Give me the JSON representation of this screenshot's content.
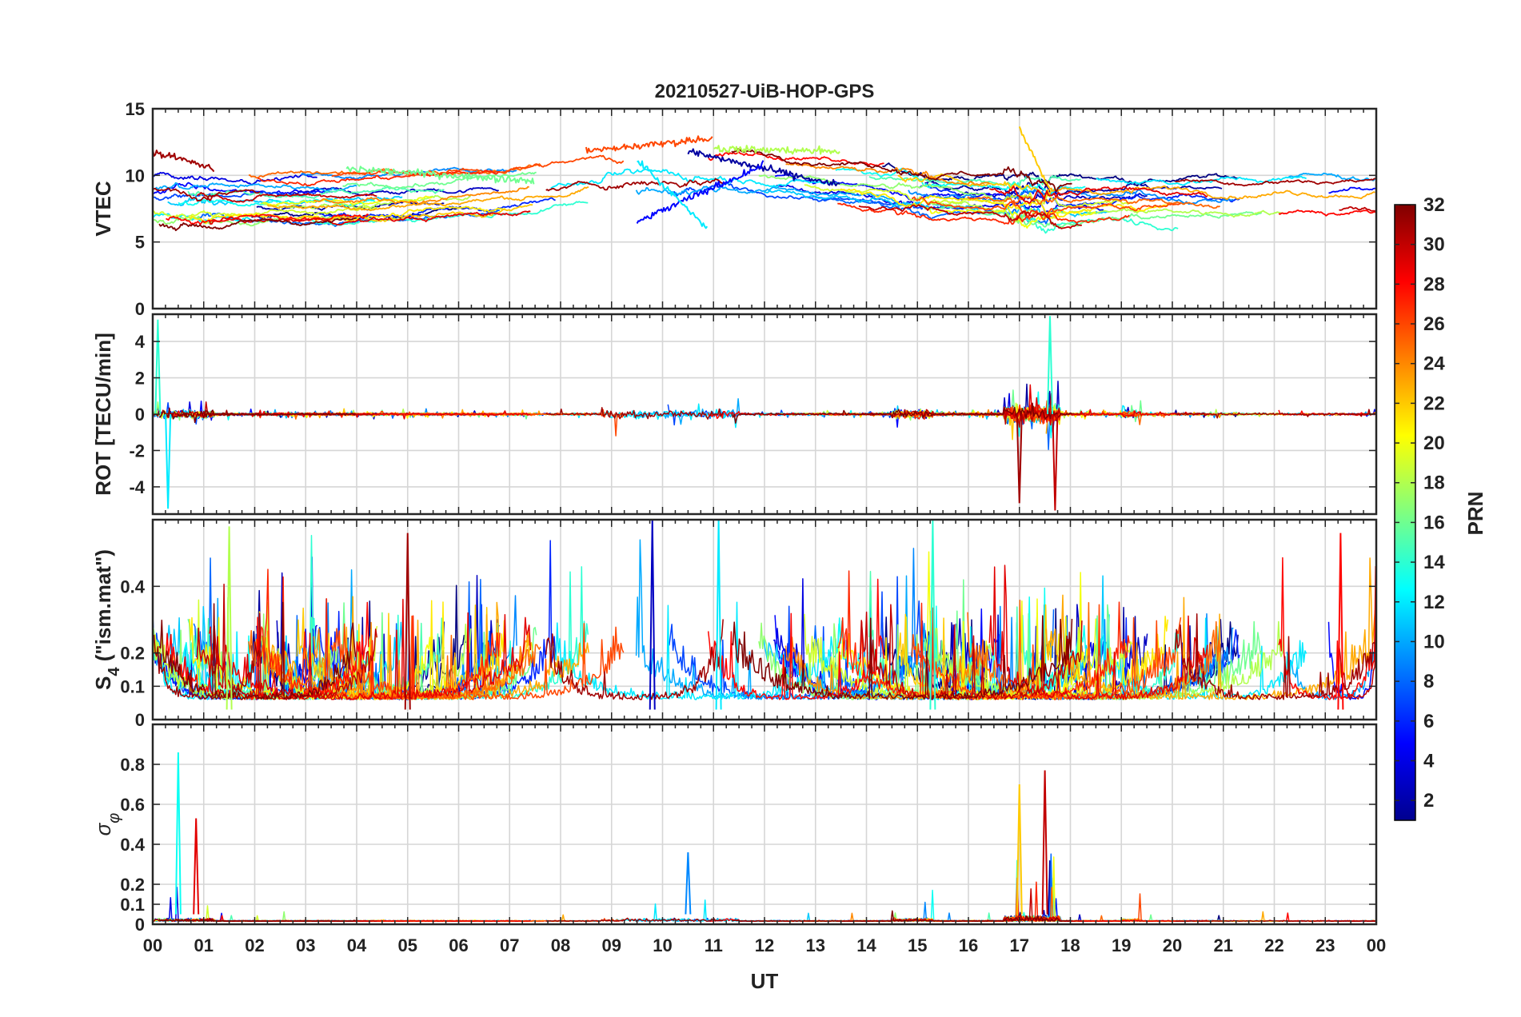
{
  "title": "20210527-UiB-HOP-GPS",
  "xaxis": {
    "label": "UT",
    "range": [
      0,
      24
    ],
    "ticks": [
      0,
      1,
      2,
      3,
      4,
      5,
      6,
      7,
      8,
      9,
      10,
      11,
      12,
      13,
      14,
      15,
      16,
      17,
      18,
      19,
      20,
      21,
      22,
      23,
      24
    ],
    "tick_labels": [
      "00",
      "01",
      "02",
      "03",
      "04",
      "05",
      "06",
      "07",
      "08",
      "09",
      "10",
      "11",
      "12",
      "13",
      "14",
      "15",
      "16",
      "17",
      "18",
      "19",
      "20",
      "21",
      "22",
      "23",
      "00"
    ]
  },
  "colorbar": {
    "label": "PRN",
    "range": [
      1,
      32
    ],
    "ticks": [
      2,
      4,
      6,
      8,
      10,
      12,
      14,
      16,
      18,
      20,
      22,
      24,
      26,
      28,
      30,
      32
    ],
    "colormap": "jet",
    "colors": [
      "#00008f",
      "#0000ff",
      "#00ffff",
      "#ffff00",
      "#ff0000",
      "#800000"
    ]
  },
  "chart_data": [
    {
      "type": "line",
      "id": "vtec",
      "ylabel": "VTEC",
      "ylim": [
        0,
        15
      ],
      "yticks": [
        0,
        5,
        10,
        15
      ],
      "ytick_labels": [
        "0",
        "5",
        "10",
        "15"
      ],
      "grid": true,
      "series_note": "one line per GPS PRN (1-32), color from colorbar",
      "series": [
        {
          "prn": 2,
          "x": [
            10.5,
            13.5
          ],
          "values": [
            11.8,
            9.2
          ]
        },
        {
          "prn": 5,
          "x": [
            9.5,
            12.0
          ],
          "values": [
            6.5,
            10.8
          ]
        },
        {
          "prn": 12,
          "x": [
            9.5,
            10.9
          ],
          "values": [
            11.2,
            5.9
          ]
        },
        {
          "prn": 16,
          "x": [
            3.8,
            7.5
          ],
          "values": [
            10.5,
            9.6
          ]
        },
        {
          "prn": 18,
          "x": [
            11.0,
            13.5
          ],
          "values": [
            12.0,
            11.8
          ]
        },
        {
          "prn": 22,
          "x": [
            17.0,
            17.6
          ],
          "values": [
            13.5,
            9.0
          ]
        },
        {
          "prn": 26,
          "x": [
            8.5,
            11.0
          ],
          "values": [
            11.8,
            12.8
          ]
        },
        {
          "prn": 31,
          "x": [
            0.0,
            1.2
          ],
          "values": [
            11.8,
            10.5
          ]
        }
      ]
    },
    {
      "type": "line",
      "id": "rot",
      "ylabel": "ROT [TECU/min]",
      "ylim": [
        -5.5,
        5.5
      ],
      "yticks": [
        -4,
        -2,
        0,
        2,
        4
      ],
      "ytick_labels": [
        "-4",
        "-2",
        "0",
        "2",
        "4"
      ],
      "grid": true,
      "series_note": "fluctuations around 0 for all PRNs; peaks near 00 UT, 09-10 UT, 15 UT and 17 UT",
      "series": [
        {
          "prn": 14,
          "x": [
            0.1
          ],
          "values": [
            5.2
          ]
        },
        {
          "prn": 12,
          "x": [
            0.3
          ],
          "values": [
            -5.2
          ]
        },
        {
          "prn": 31,
          "x": [
            17.0
          ],
          "values": [
            -4.9
          ]
        },
        {
          "prn": 14,
          "x": [
            17.6
          ],
          "values": [
            5.4
          ]
        },
        {
          "prn": 30,
          "x": [
            17.7
          ],
          "values": [
            -5.3
          ]
        }
      ]
    },
    {
      "type": "line",
      "id": "s4",
      "ylabel": "S",
      "ylabel_sub": "4",
      "ylabel_suffix": " (\"ism.mat\")",
      "ylim": [
        0,
        0.6
      ],
      "yticks": [
        0,
        0.1,
        0.2,
        0.4
      ],
      "ytick_labels": [
        "0",
        "0.1",
        "0.2",
        "0.4"
      ],
      "grid": true,
      "series_note": "background near 0.05-0.1 with bursts up to ~0.6",
      "series": [
        {
          "prn": 18,
          "x": [
            1.5
          ],
          "values": [
            0.58
          ]
        },
        {
          "prn": 31,
          "x": [
            5.0
          ],
          "values": [
            0.56
          ]
        },
        {
          "prn": 3,
          "x": [
            9.8
          ],
          "values": [
            0.6
          ]
        },
        {
          "prn": 12,
          "x": [
            11.1
          ],
          "values": [
            0.6
          ]
        },
        {
          "prn": 14,
          "x": [
            15.3
          ],
          "values": [
            0.6
          ]
        },
        {
          "prn": 28,
          "x": [
            23.3
          ],
          "values": [
            0.56
          ]
        }
      ]
    },
    {
      "type": "line",
      "id": "sigma_phi",
      "ylabel": "σ",
      "ylabel_sub": "φ",
      "ylim": [
        0,
        1.0
      ],
      "yticks": [
        0,
        0.1,
        0.2,
        0.4,
        0.6,
        0.8
      ],
      "ytick_labels": [
        "0",
        "0.1",
        "0.2",
        "0.4",
        "0.6",
        "0.8"
      ],
      "grid": true,
      "series_note": "mostly below 0.05; spikes at 00-01 UT, 09-11 UT and 17 UT",
      "series": [
        {
          "prn": 13,
          "x": [
            0.5
          ],
          "values": [
            0.86
          ]
        },
        {
          "prn": 29,
          "x": [
            0.85
          ],
          "values": [
            0.53
          ]
        },
        {
          "prn": 9,
          "x": [
            10.5
          ],
          "values": [
            0.36
          ]
        },
        {
          "prn": 22,
          "x": [
            17.0
          ],
          "values": [
            0.7
          ]
        },
        {
          "prn": 30,
          "x": [
            17.5
          ],
          "values": [
            0.77
          ]
        }
      ]
    }
  ]
}
